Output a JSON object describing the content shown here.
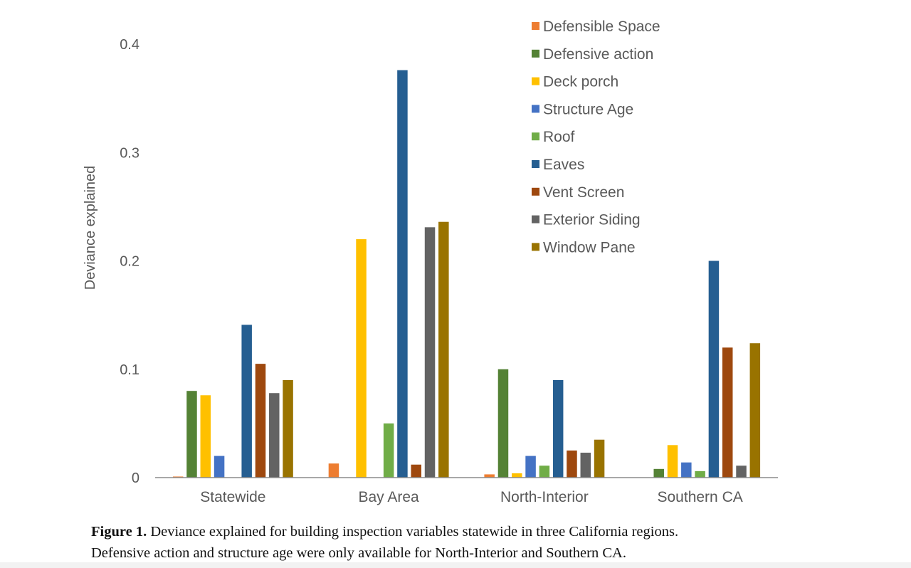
{
  "chart_data": {
    "type": "bar",
    "ylabel": "Deviance explained",
    "ylim": [
      0,
      0.4
    ],
    "yticks": [
      "0",
      "0.1",
      "0.2",
      "0.3",
      "0.4"
    ],
    "ytick_values": [
      0,
      0.1,
      0.2,
      0.3,
      0.4
    ],
    "grid": false,
    "legend_position": "top-right",
    "categories": [
      "Statewide",
      "Bay Area",
      "North-Interior",
      "Southern CA"
    ],
    "series": [
      {
        "name": "Defensible Space",
        "color": "#ED7D31",
        "values": [
          0.001,
          0.013,
          0.003,
          null
        ]
      },
      {
        "name": "Defensive action",
        "color": "#548235",
        "values": [
          0.08,
          null,
          0.1,
          0.008
        ]
      },
      {
        "name": "Deck porch",
        "color": "#FFC000",
        "values": [
          0.076,
          0.22,
          0.004,
          0.03
        ]
      },
      {
        "name": "Structure Age",
        "color": "#4472C4",
        "values": [
          0.02,
          null,
          0.02,
          0.014
        ]
      },
      {
        "name": "Roof",
        "color": "#70AD47",
        "values": [
          null,
          0.05,
          0.011,
          0.006
        ]
      },
      {
        "name": "Eaves",
        "color": "#255E91",
        "values": [
          0.141,
          0.376,
          0.09,
          0.2
        ]
      },
      {
        "name": "Vent Screen",
        "color": "#9E480E",
        "values": [
          0.105,
          0.012,
          0.025,
          0.12
        ]
      },
      {
        "name": "Exterior Siding",
        "color": "#636363",
        "values": [
          0.078,
          0.231,
          0.023,
          0.011
        ]
      },
      {
        "name": "Window Pane",
        "color": "#997300",
        "values": [
          0.09,
          0.236,
          0.035,
          0.124
        ]
      }
    ]
  },
  "caption": {
    "label": "Figure 1.",
    "line1": " Deviance explained for building inspection variables statewide in three California regions.",
    "line2": "Defensive action and structure age were only available for North-Interior and Southern CA."
  }
}
